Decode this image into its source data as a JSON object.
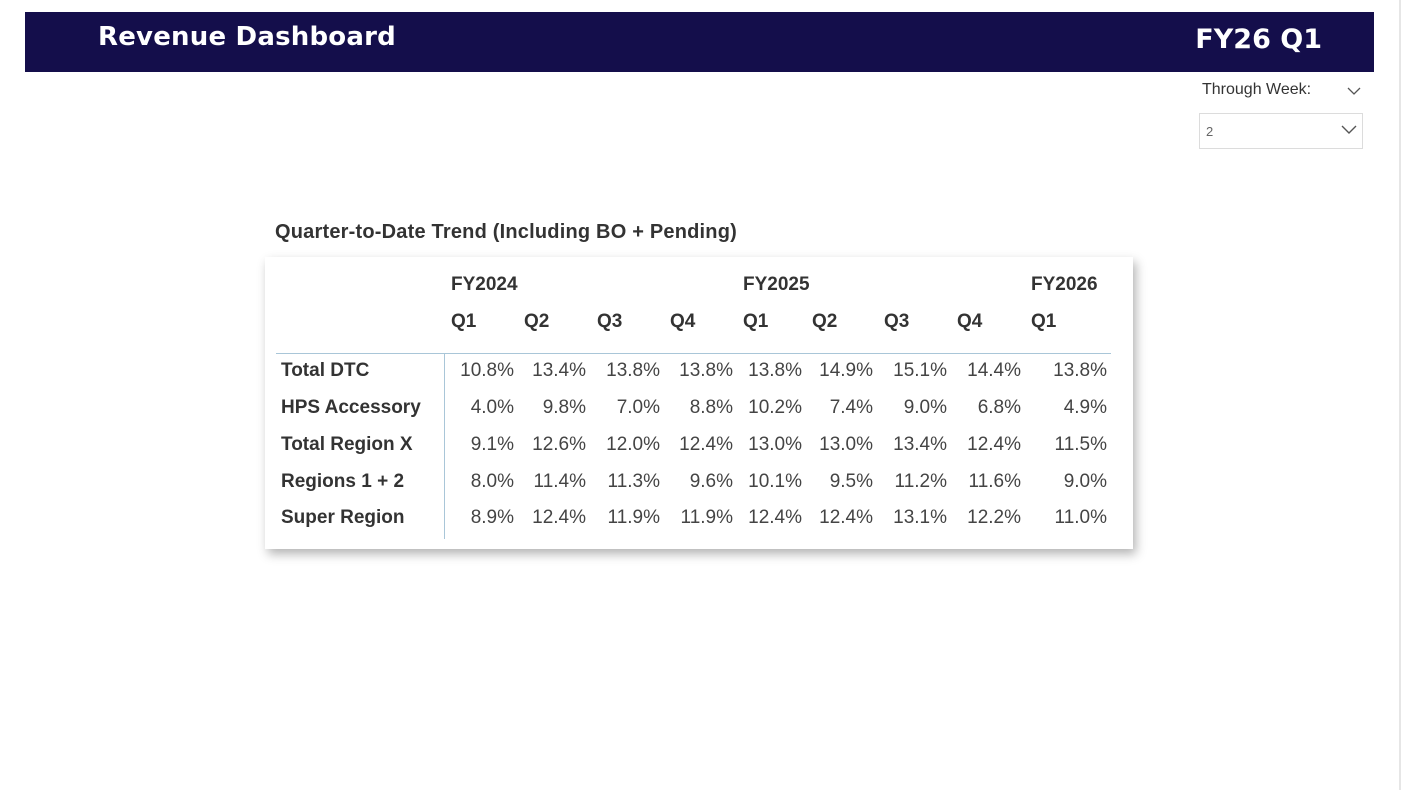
{
  "header": {
    "title": "Revenue Dashboard",
    "period": "FY26 Q1",
    "background_color": "#140e4b"
  },
  "filter": {
    "label": "Through Week:",
    "value": "2"
  },
  "table": {
    "title": "Quarter-to-Date Trend (Including BO + Pending)",
    "years": [
      {
        "label": "FY2024",
        "quarters": [
          "Q1",
          "Q2",
          "Q3",
          "Q4"
        ]
      },
      {
        "label": "FY2025",
        "quarters": [
          "Q1",
          "Q2",
          "Q3",
          "Q4"
        ]
      },
      {
        "label": "FY2026",
        "quarters": [
          "Q1"
        ]
      }
    ],
    "rows": [
      {
        "label": "Total DTC",
        "values": [
          "10.8%",
          "13.4%",
          "13.8%",
          "13.8%",
          "13.8%",
          "14.9%",
          "15.1%",
          "14.4%",
          "13.8%"
        ]
      },
      {
        "label": "HPS Accessory",
        "values": [
          "4.0%",
          "9.8%",
          "7.0%",
          "8.8%",
          "10.2%",
          "7.4%",
          "9.0%",
          "6.8%",
          "4.9%"
        ]
      },
      {
        "label": "Total Region X",
        "values": [
          "9.1%",
          "12.6%",
          "12.0%",
          "12.4%",
          "13.0%",
          "13.0%",
          "13.4%",
          "12.4%",
          "11.5%"
        ]
      },
      {
        "label": "Regions 1 + 2",
        "values": [
          "8.0%",
          "11.4%",
          "11.3%",
          "9.6%",
          "10.1%",
          "9.5%",
          "11.2%",
          "11.6%",
          "9.0%"
        ]
      },
      {
        "label": "Super Region",
        "values": [
          "8.9%",
          "12.4%",
          "11.9%",
          "11.9%",
          "12.4%",
          "12.4%",
          "13.1%",
          "12.2%",
          "11.0%"
        ]
      }
    ]
  }
}
